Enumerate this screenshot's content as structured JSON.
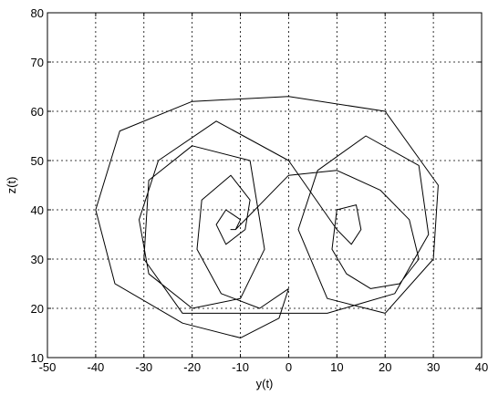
{
  "chart_data": {
    "type": "line",
    "title": "",
    "xlabel": "y(t)",
    "ylabel": "z(t)",
    "xlim": [
      -50,
      40
    ],
    "ylim": [
      10,
      80
    ],
    "xticks": [
      -50,
      -40,
      -30,
      -20,
      -10,
      0,
      10,
      20,
      30,
      40
    ],
    "yticks": [
      10,
      20,
      30,
      40,
      50,
      60,
      70,
      80
    ],
    "grid": "dashed",
    "legend": "none",
    "series": [
      {
        "name": "",
        "color": "#000000",
        "description": "phase-portrait trajectory (two-lobed attractor with foci near (-11, 36) and (11, 36))",
        "x": [
          0,
          -6,
          -14,
          -19,
          -18,
          -12,
          -8,
          -9,
          -13,
          -15,
          -13,
          -10,
          -11,
          -12,
          -11,
          0,
          10,
          19,
          25,
          27,
          23,
          17,
          12,
          9,
          10,
          14,
          15,
          13,
          10,
          0,
          -15,
          -27,
          -31,
          -29,
          -20,
          -10,
          -5,
          -8,
          -20,
          -29,
          -30,
          -22,
          -8,
          8,
          22,
          29,
          27,
          16,
          6,
          2,
          8,
          20,
          30,
          31,
          20,
          0,
          -20,
          -35,
          -40,
          -36,
          -22,
          -10,
          -2,
          0
        ],
        "y": [
          24,
          20,
          23,
          32,
          42,
          47,
          42,
          36,
          33,
          37,
          40,
          38,
          36,
          36,
          36,
          47,
          48,
          44,
          38,
          30,
          25,
          24,
          27,
          32,
          40,
          41,
          36,
          33,
          36,
          50,
          58,
          50,
          38,
          27,
          20,
          22,
          32,
          50,
          53,
          46,
          30,
          19,
          19,
          19,
          23,
          35,
          49,
          55,
          48,
          36,
          22,
          19,
          30,
          45,
          60,
          63,
          62,
          56,
          40,
          25,
          17,
          14,
          18,
          24
        ]
      }
    ],
    "stroke_width": 1
  }
}
